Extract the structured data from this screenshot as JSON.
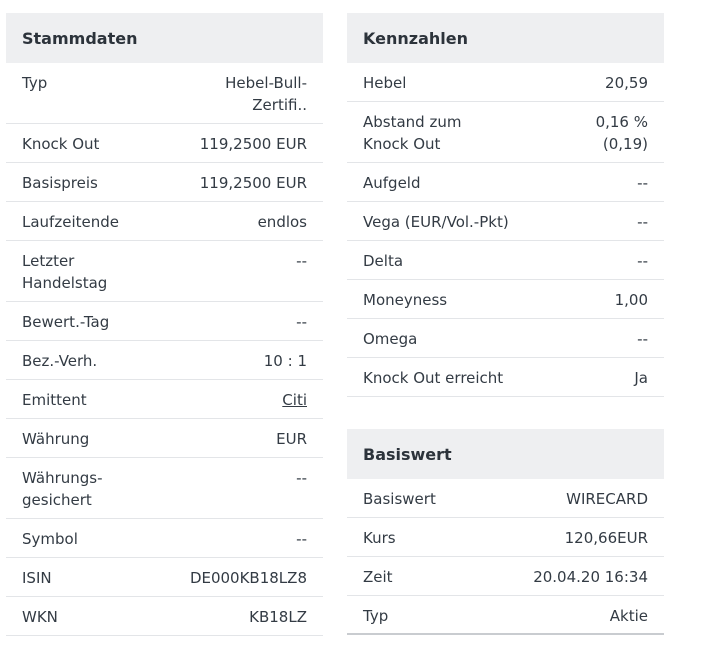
{
  "stammdaten": {
    "title": "Stammdaten",
    "rows": [
      {
        "label": "Typ",
        "value": "Hebel-Bull-Zertifi.."
      },
      {
        "label": "Knock Out",
        "value": "119,2500 EUR"
      },
      {
        "label": "Basispreis",
        "value": "119,2500 EUR"
      },
      {
        "label": "Laufzeitende",
        "value": "endlos"
      },
      {
        "label": "Letzter Handelstag",
        "value": "--"
      },
      {
        "label": "Bewert.-Tag",
        "value": "--"
      },
      {
        "label": "Bez.-Verh.",
        "value": "10 : 1"
      },
      {
        "label": "Emittent",
        "value": "Citi"
      },
      {
        "label": "Währung",
        "value": "EUR"
      },
      {
        "label": "Währungs-gesichert",
        "value": "--"
      },
      {
        "label": "Symbol",
        "value": "--"
      },
      {
        "label": "ISIN",
        "value": "DE000KB18LZ8"
      },
      {
        "label": "WKN",
        "value": "KB18LZ"
      }
    ]
  },
  "kennzahlen": {
    "title": "Kennzahlen",
    "rows": [
      {
        "label": "Hebel",
        "value": "20,59"
      },
      {
        "label": "Abstand zum Knock Out",
        "value": "0,16 % (0,19)"
      },
      {
        "label": "Aufgeld",
        "value": "--"
      },
      {
        "label": "Vega (EUR/Vol.-Pkt)",
        "value": "--"
      },
      {
        "label": "Delta",
        "value": "--"
      },
      {
        "label": "Moneyness",
        "value": "1,00"
      },
      {
        "label": "Omega",
        "value": "--"
      },
      {
        "label": "Knock Out erreicht",
        "value": "Ja"
      }
    ]
  },
  "basiswert": {
    "title": "Basiswert",
    "rows": [
      {
        "label": "Basiswert",
        "value": "WIRECARD"
      },
      {
        "label": "Kurs",
        "value": "120,66EUR"
      },
      {
        "label": "Zeit",
        "value": "20.04.20 16:34"
      },
      {
        "label": "Typ",
        "value": "Aktie"
      }
    ]
  }
}
